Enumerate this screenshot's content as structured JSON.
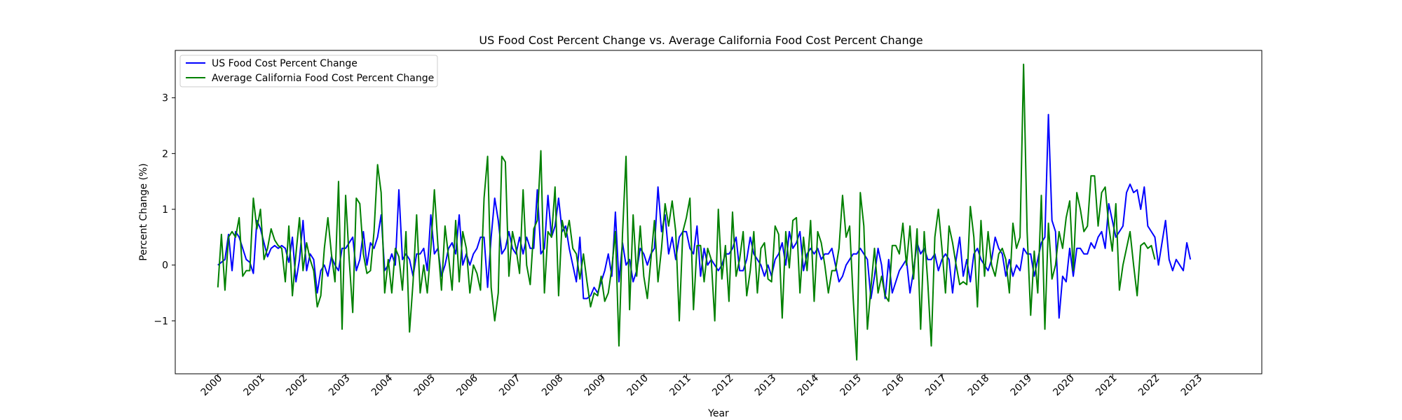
{
  "chart_data": {
    "type": "line",
    "title": "US Food Cost Percent Change vs. Average California Food Cost Percent Change",
    "xlabel": "Year",
    "ylabel": "Percent Change (%)",
    "xlim": [
      1999.0,
      2024.5
    ],
    "ylim": [
      -1.95,
      3.85
    ],
    "xticks": [
      "2000",
      "2001",
      "2002",
      "2003",
      "2004",
      "2005",
      "2006",
      "2007",
      "2008",
      "2009",
      "2010",
      "2011",
      "2012",
      "2013",
      "2014",
      "2015",
      "2016",
      "2017",
      "2018",
      "2019",
      "2020",
      "2021",
      "2022",
      "2023"
    ],
    "yticks": [
      "−1",
      "0",
      "1",
      "2",
      "3"
    ],
    "legend_position": "upper-left",
    "grid": false,
    "x_start": 2000.0,
    "x_step": 0.0833,
    "series": [
      {
        "name": "US Food Cost Percent Change",
        "color": "#0000ff",
        "values": [
          0.0,
          0.05,
          0.1,
          0.55,
          -0.1,
          0.6,
          0.5,
          0.3,
          0.1,
          0.05,
          -0.15,
          0.8,
          0.65,
          0.4,
          0.15,
          0.3,
          0.35,
          0.3,
          0.35,
          0.3,
          0.05,
          0.5,
          -0.3,
          0.1,
          0.8,
          -0.1,
          0.2,
          0.1,
          -0.5,
          -0.1,
          0.0,
          -0.2,
          0.15,
          0.0,
          -0.1,
          0.3,
          0.3,
          0.4,
          0.5,
          -0.1,
          0.1,
          0.6,
          0.0,
          0.4,
          0.3,
          0.5,
          0.9,
          -0.1,
          0.0,
          0.2,
          0.0,
          1.35,
          0.1,
          0.2,
          0.1,
          -0.2,
          0.2,
          0.2,
          0.3,
          -0.1,
          0.9,
          0.2,
          0.3,
          -0.2,
          0.0,
          0.3,
          0.4,
          0.2,
          0.9,
          0.0,
          0.2,
          0.0,
          0.2,
          0.3,
          0.5,
          0.5,
          -0.4,
          0.5,
          1.2,
          0.8,
          0.2,
          0.3,
          0.6,
          0.3,
          0.2,
          0.5,
          0.2,
          0.5,
          0.3,
          0.3,
          1.35,
          0.2,
          0.3,
          1.25,
          0.5,
          0.7,
          1.2,
          0.6,
          0.7,
          0.3,
          0.0,
          -0.3,
          0.5,
          -0.6,
          -0.6,
          -0.55,
          -0.4,
          -0.5,
          -0.3,
          -0.1,
          0.2,
          -0.2,
          0.95,
          -0.3,
          0.4,
          0.0,
          0.1,
          -0.3,
          -0.1,
          0.3,
          0.2,
          0.0,
          0.2,
          0.3,
          1.4,
          0.6,
          0.9,
          0.2,
          0.5,
          0.1,
          0.5,
          0.6,
          0.6,
          0.3,
          0.2,
          0.7,
          -0.2,
          0.3,
          0.0,
          0.1,
          0.0,
          -0.1,
          0.0,
          0.2,
          0.2,
          0.3,
          0.5,
          -0.1,
          -0.1,
          0.1,
          0.5,
          0.2,
          0.1,
          0.0,
          -0.2,
          0.0,
          -0.2,
          0.1,
          0.2,
          0.4,
          0.0,
          0.6,
          0.3,
          0.4,
          0.6,
          -0.1,
          0.2,
          0.3,
          0.2,
          0.3,
          0.1,
          0.2,
          0.2,
          0.3,
          0.0,
          -0.3,
          -0.2,
          0.0,
          0.1,
          0.2,
          0.2,
          0.3,
          0.2,
          0.1,
          -0.6,
          -0.2,
          0.3,
          0.0,
          -0.6,
          0.1,
          -0.5,
          -0.3,
          -0.1,
          0.0,
          0.1,
          -0.5,
          -0.1,
          0.4,
          0.2,
          0.3,
          0.1,
          0.1,
          0.2,
          -0.1,
          0.1,
          0.2,
          0.1,
          -0.5,
          0.1,
          0.5,
          -0.2,
          0.1,
          -0.3,
          0.2,
          0.3,
          0.1,
          0.0,
          -0.1,
          0.1,
          0.5,
          0.3,
          0.2,
          -0.2,
          0.1,
          -0.2,
          0.0,
          -0.1,
          0.3,
          0.2,
          0.2,
          -0.2,
          0.1,
          0.4,
          0.5,
          2.7,
          0.8,
          0.6,
          -0.95,
          -0.2,
          -0.3,
          0.3,
          -0.2,
          0.3,
          0.3,
          0.2,
          0.2,
          0.4,
          0.3,
          0.5,
          0.6,
          0.3,
          1.1,
          0.8,
          0.5,
          0.6,
          0.7,
          1.3,
          1.45,
          1.3,
          1.35,
          1.0,
          1.4,
          0.7,
          0.6,
          0.5,
          0.0,
          0.4,
          0.8,
          0.1,
          -0.1,
          0.1,
          0.0,
          -0.1,
          0.4,
          0.1
        ]
      },
      {
        "name": "Average California Food Cost Percent Change",
        "color": "#008000",
        "values": [
          -0.4,
          0.55,
          -0.45,
          0.5,
          0.6,
          0.5,
          0.85,
          -0.2,
          -0.1,
          -0.1,
          1.2,
          0.65,
          1.0,
          0.1,
          0.3,
          0.65,
          0.45,
          0.35,
          0.3,
          -0.3,
          0.7,
          -0.55,
          0.2,
          0.85,
          -0.1,
          0.4,
          0.1,
          -0.1,
          -0.75,
          -0.55,
          0.3,
          0.85,
          0.2,
          -0.3,
          1.5,
          -1.15,
          1.25,
          0.1,
          -0.85,
          1.2,
          1.1,
          0.2,
          -0.15,
          -0.1,
          0.6,
          1.8,
          1.3,
          -0.5,
          0.1,
          -0.5,
          0.3,
          0.15,
          -0.45,
          0.6,
          -1.2,
          -0.3,
          0.9,
          -0.5,
          0.0,
          -0.5,
          0.3,
          1.35,
          0.35,
          -0.45,
          0.7,
          0.15,
          -0.45,
          0.8,
          -0.3,
          0.6,
          0.3,
          -0.5,
          0.0,
          -0.15,
          -0.45,
          1.2,
          1.95,
          -0.4,
          -1.0,
          -0.5,
          1.95,
          1.85,
          -0.2,
          0.6,
          0.3,
          -0.15,
          1.35,
          0.0,
          -0.35,
          0.65,
          0.8,
          2.05,
          -0.5,
          0.6,
          0.5,
          1.4,
          -0.55,
          0.8,
          0.5,
          0.8,
          0.3,
          0.2,
          -0.25,
          0.2,
          -0.3,
          -0.75,
          -0.5,
          -0.55,
          -0.2,
          -0.65,
          -0.5,
          -0.05,
          0.6,
          -1.45,
          0.55,
          1.95,
          -0.8,
          0.9,
          -0.2,
          0.7,
          -0.2,
          -0.6,
          0.1,
          0.8,
          -0.3,
          0.3,
          1.1,
          0.7,
          1.15,
          0.6,
          -1.0,
          0.6,
          0.85,
          1.2,
          -0.8,
          0.35,
          0.35,
          -0.3,
          0.3,
          0.1,
          -1.0,
          1.0,
          -0.25,
          0.35,
          -0.65,
          0.95,
          -0.2,
          0.1,
          0.6,
          -0.55,
          -0.1,
          0.6,
          -0.5,
          0.3,
          0.4,
          -0.25,
          -0.3,
          0.7,
          0.55,
          -0.95,
          0.6,
          -0.05,
          0.8,
          0.85,
          -0.5,
          0.5,
          -0.1,
          0.8,
          -0.65,
          0.6,
          0.4,
          0.0,
          -0.5,
          -0.1,
          -0.1,
          0.3,
          1.25,
          0.5,
          0.7,
          -0.6,
          -1.7,
          1.3,
          0.7,
          -1.15,
          -0.4,
          0.3,
          -0.5,
          -0.2,
          -0.55,
          -0.65,
          0.35,
          0.35,
          0.2,
          0.75,
          0.0,
          0.7,
          -0.25,
          0.65,
          -1.15,
          0.6,
          -0.3,
          -1.45,
          0.5,
          1.0,
          0.3,
          -0.5,
          0.7,
          0.4,
          0.0,
          -0.35,
          -0.3,
          -0.35,
          1.05,
          0.5,
          -0.75,
          0.8,
          -0.2,
          0.6,
          0.0,
          -0.2,
          0.2,
          0.3,
          0.1,
          -0.5,
          0.75,
          0.3,
          0.5,
          3.6,
          0.6,
          -0.9,
          0.25,
          -0.5,
          1.25,
          -1.15,
          0.75,
          -0.25,
          0.0,
          0.6,
          0.3,
          0.85,
          1.15,
          -0.1,
          1.3,
          1.0,
          0.6,
          0.7,
          1.6,
          1.6,
          0.7,
          1.3,
          1.4,
          0.7,
          0.25,
          1.1,
          -0.45,
          0.0,
          0.3,
          0.6,
          0.0,
          -0.55,
          0.35,
          0.4,
          0.3,
          0.35,
          0.1
        ]
      }
    ]
  }
}
